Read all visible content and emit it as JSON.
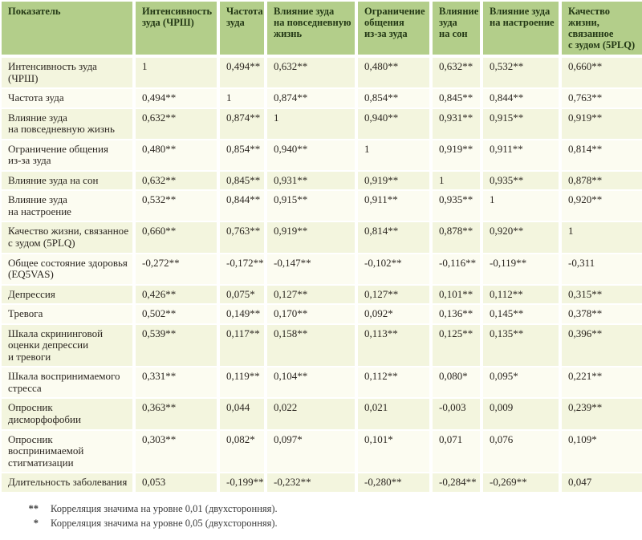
{
  "colors": {
    "header_bg": "#b3ce8a",
    "header_text": "#243916",
    "row_stripe_green": "#f3f5de",
    "row_stripe_cream": "#fcfcf1",
    "separator": "#ffffff",
    "body_text": "#2b2620"
  },
  "table": {
    "columns": [
      "Показатель",
      "Интенсивность\nзуда (ЧРШ)",
      "Частота\nзуда",
      "Влияние зуда\nна повседневную\nжизнь",
      "Ограничение\nобщения\nиз-за зуда",
      "Влияние\nзуда\nна сон",
      "Влияние зуда\nна настроение",
      "Качество\nжизни,\nсвязанное\nс зудом (5PLQ)"
    ],
    "rows": [
      {
        "label": "Интенсивность зуда\n(ЧРШ)",
        "values": [
          "1",
          "0,494**",
          "0,632**",
          "0,480**",
          "0,632**",
          "0,532**",
          "0,660**"
        ]
      },
      {
        "label": "Частота зуда",
        "values": [
          "0,494**",
          "1",
          "0,874**",
          "0,854**",
          "0,845**",
          "0,844**",
          "0,763**"
        ]
      },
      {
        "label": "Влияние зуда\nна  повседневную жизнь",
        "values": [
          "0,632**",
          "0,874**",
          "1",
          "0,940**",
          "0,931**",
          "0,915**",
          "0,919**"
        ]
      },
      {
        "label": "Ограничение общения\nиз-за зуда",
        "values": [
          "0,480**",
          "0,854**",
          "0,940**",
          "1",
          "0,919**",
          "0,911**",
          "0,814**"
        ]
      },
      {
        "label": "Влияние зуда на сон",
        "values": [
          "0,632**",
          "0,845**",
          "0,931**",
          "0,919**",
          "1",
          "0,935**",
          "0,878**"
        ]
      },
      {
        "label": "Влияние зуда\nна настроение",
        "values": [
          "0,532**",
          "0,844**",
          "0,915**",
          "0,911**",
          "0,935**",
          "1",
          "0,920**"
        ]
      },
      {
        "label": "Качество жизни, связанное\nс зудом (5PLQ)",
        "values": [
          "0,660**",
          "0,763**",
          "0,919**",
          "0,814**",
          "0,878**",
          "0,920**",
          "1"
        ]
      },
      {
        "label": "Общее состояние здоровья\n(EQ5VAS)",
        "values": [
          "-0,272**",
          "-0,172**",
          "-0,147**",
          "-0,102**",
          "-0,116**",
          "-0,119**",
          "-0,311"
        ]
      },
      {
        "label": "Депрессия",
        "values": [
          "0,426**",
          "0,075*",
          "0,127**",
          "0,127**",
          "0,101**",
          "0,112**",
          "0,315**"
        ]
      },
      {
        "label": "Тревога",
        "values": [
          "0,502**",
          "0,149**",
          "0,170**",
          "0,092*",
          "0,136**",
          "0,145**",
          "0,378**"
        ]
      },
      {
        "label": "Шкала скрининговой\nоценки депрессии\nи тревоги",
        "values": [
          "0,539**",
          "0,117**",
          "0,158**",
          "0,113**",
          "0,125**",
          "0,135**",
          "0,396**"
        ]
      },
      {
        "label": "Шкала воспринимаемого\nстресса",
        "values": [
          "0,331**",
          "0,119**",
          "0,104**",
          "0,112**",
          "0,080*",
          "0,095*",
          "0,221**"
        ]
      },
      {
        "label": "Опросник\nдисморфофобии",
        "values": [
          "0,363**",
          "0,044",
          "0,022",
          "0,021",
          "-0,003",
          "0,009",
          "0,239**"
        ]
      },
      {
        "label": "Опросник\nвоспринимаемой\nстигматизации",
        "values": [
          "0,303**",
          "0,082*",
          "0,097*",
          "0,101*",
          "0,071",
          "0,076",
          "0,109*"
        ]
      },
      {
        "label": "Длительность заболевания",
        "values": [
          "0,053",
          "-0,199**",
          "-0,232**",
          "-0,280**",
          "-0,284**",
          "-0,269**",
          "0,047"
        ]
      }
    ]
  },
  "footnotes": [
    {
      "marker": "**",
      "text": "Корреляция значима на уровне 0,01 (двухсторонняя)."
    },
    {
      "marker": "*",
      "text": "Корреляция значима на уровне 0,05 (двухсторонняя)."
    }
  ]
}
